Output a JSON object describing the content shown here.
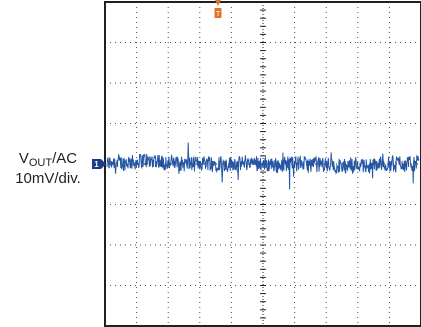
{
  "chart_data": {
    "type": "line",
    "title": "",
    "xlabel": "",
    "ylabel": "VOUT/AC 10mV/div.",
    "channel": {
      "name_main": "V",
      "name_sub": "OUT",
      "coupling": "/AC",
      "scale": "10mV/div.",
      "marker": "1"
    },
    "trigger_marker": "T",
    "divisions": {
      "x": 10,
      "y": 8
    },
    "xlim": [
      0,
      10
    ],
    "ylim": [
      -4,
      4
    ],
    "grid": true,
    "series": [
      {
        "noise_pp_div": 0.7,
        "offset_div": 0.0,
        "samples": 700
      }
    ],
    "colors": {
      "trace": "#2457a7",
      "channel_marker": "#1f3c88",
      "trigger_marker": "#e0722a",
      "frame": "#231f20",
      "grid": "#231f20"
    }
  }
}
